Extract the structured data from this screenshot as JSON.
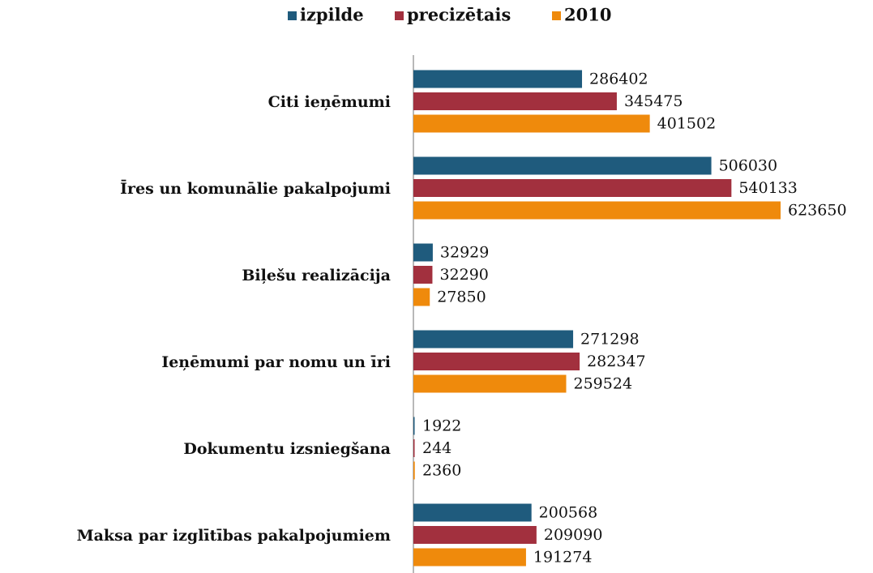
{
  "chart_data": {
    "type": "bar",
    "orientation": "horizontal",
    "categories": [
      "Citi ieņēmumi",
      "Īres un komunālie pakalpojumi",
      "Biļešu realizācija",
      "Ieņēmumi par nomu un īri",
      "Dokumentu izsniegšana",
      "Maksa par izglītības pakalpojumiem"
    ],
    "series": [
      {
        "name": "izpilde",
        "color": "#1f5b7d",
        "values": [
          286402,
          506030,
          32929,
          271298,
          1922,
          200568
        ]
      },
      {
        "name": "precizētais",
        "color": "#a2303e",
        "values": [
          345475,
          540133,
          32290,
          282347,
          244,
          209090
        ]
      },
      {
        "name": "2010",
        "color": "#ef8a0c",
        "values": [
          401502,
          623650,
          27850,
          259524,
          2360,
          191274
        ]
      }
    ],
    "legend": "top"
  }
}
